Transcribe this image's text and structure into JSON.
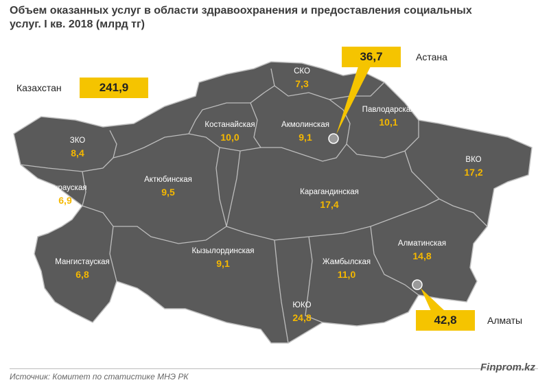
{
  "title": "Объем оказанных услуг в области здравоохранения и предоставления социальных услуг. I кв. 2018 (млрд тг)",
  "total": {
    "label": "Казахстан",
    "value": "241,9"
  },
  "astana": {
    "label": "Астана",
    "value": "36,7"
  },
  "almaty": {
    "label": "Алматы",
    "value": "42,8"
  },
  "regions": [
    {
      "name": "ЗКО",
      "value": "8,4"
    },
    {
      "name": "Атырауская",
      "value": "6,9"
    },
    {
      "name": "Мангистауская",
      "value": "6,8"
    },
    {
      "name": "Актюбинская",
      "value": "9,5"
    },
    {
      "name": "Костанайская",
      "value": "10,0"
    },
    {
      "name": "СКО",
      "value": "7,3"
    },
    {
      "name": "Акмолинская",
      "value": "9,1"
    },
    {
      "name": "Павлодарская",
      "value": "10,1"
    },
    {
      "name": "ВКО",
      "value": "17,2"
    },
    {
      "name": "Карагандинская",
      "value": "17,4"
    },
    {
      "name": "Кызылординская",
      "value": "9,1"
    },
    {
      "name": "Жамбылская",
      "value": "11,0"
    },
    {
      "name": "ЮКО",
      "value": "24,8"
    },
    {
      "name": "Алматинская",
      "value": "14,8"
    }
  ],
  "colors": {
    "map_fill": "#5a5a5a",
    "border": "#c8c8c8",
    "accent": "#f5c400",
    "value_text": "#f5b800"
  },
  "source": "Источник: Комитет по статистике МНЭ РК",
  "brand": "Finprom.kz"
}
